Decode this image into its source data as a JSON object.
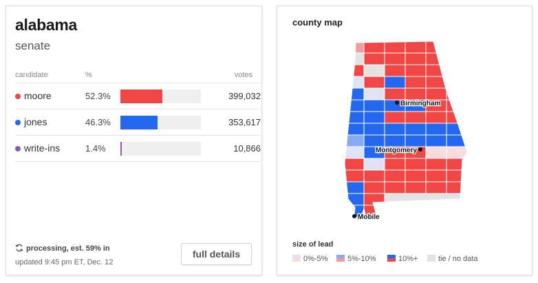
{
  "results": {
    "state": "alabama",
    "race": "senate",
    "headers": {
      "candidate": "candidate",
      "pct": "%",
      "votes": "votes"
    },
    "candidates": [
      {
        "name": "moore",
        "pct": "52.3%",
        "share": 0.523,
        "votes": "399,032",
        "color": "#f04646"
      },
      {
        "name": "jones",
        "pct": "46.3%",
        "share": 0.463,
        "votes": "353,617",
        "color": "#2468f0"
      },
      {
        "name": "write-ins",
        "pct": "1.4%",
        "share": 0.014,
        "votes": "10,866",
        "color": "#8e56b4"
      }
    ],
    "status": "processing, est. 59% in",
    "updated": "updated 9:45 pm ET, Dec. 12",
    "details_button": "full details"
  },
  "map": {
    "title": "county map",
    "cities": [
      {
        "name": "Birmingham"
      },
      {
        "name": "Montgomery"
      },
      {
        "name": "Mobile"
      }
    ],
    "legend_title": "size of lead",
    "legend": [
      {
        "label": "0%-5%",
        "colors": [
          "#dfe3f5",
          "#f6dcdc"
        ]
      },
      {
        "label": "5%-10%",
        "colors": [
          "#8aaaf0",
          "#f29c9c"
        ]
      },
      {
        "label": "10%+",
        "colors": [
          "#2468f0",
          "#f04646"
        ]
      },
      {
        "label": "tie / no data",
        "colors": [
          "#e3e3e3"
        ]
      }
    ],
    "colors": {
      "rep_strong": "#f04646",
      "rep_mid": "#f29c9c",
      "rep_light": "#f6dcdc",
      "dem_strong": "#2468f0",
      "dem_mid": "#8aaaf0",
      "dem_light": "#dfe3f5",
      "no_data": "#e3e3e3"
    }
  }
}
